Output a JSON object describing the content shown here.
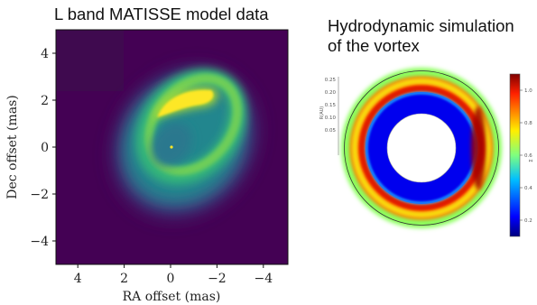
{
  "left_panel": {
    "title": "L band MATISSE model data",
    "xlabel": "RA offset (mas)",
    "ylabel": "Dec offset (mas)",
    "x_ticks": [
      "4",
      "2",
      "0",
      "−2",
      "−4"
    ],
    "y_ticks": [
      "4",
      "2",
      "0",
      "−2",
      "−4"
    ]
  },
  "right_panel": {
    "title_line1": "Hydrodynamic simulation",
    "title_line2": "of the vortex",
    "r_axis_label": "R(AU)",
    "r_ticks": [
      "0.25",
      "0.20",
      "0.15",
      "0.10",
      "0.05"
    ],
    "colorbar_label": "Σ",
    "colorbar_ticks": [
      "1.0",
      "0.8",
      "0.6",
      "0.4",
      "0.2"
    ]
  },
  "chart_data": [
    {
      "type": "heatmap",
      "title": "L band MATISSE model data",
      "xlabel": "RA offset (mas)",
      "ylabel": "Dec offset (mas)",
      "xlim": [
        5,
        -5
      ],
      "ylim": [
        -5,
        5
      ],
      "x_ticks": [
        4,
        2,
        0,
        -2,
        -4
      ],
      "y_ticks": [
        4,
        2,
        0,
        -2,
        -4
      ],
      "colormap": "viridis",
      "central_source": [
        0,
        0
      ]
    },
    {
      "type": "heatmap",
      "title": "Hydrodynamic simulation of the vortex",
      "projection": "polar",
      "r_label": "R(AU)",
      "r_ticks": [
        0.05,
        0.1,
        0.15,
        0.2,
        0.25
      ],
      "colormap": "jet",
      "colorbar_ticks": [
        0.2,
        0.4,
        0.6,
        0.8,
        1.0
      ],
      "colorbar_label": "Σ"
    }
  ]
}
